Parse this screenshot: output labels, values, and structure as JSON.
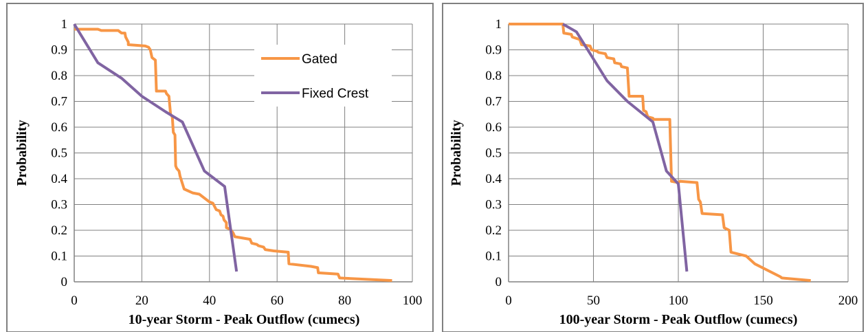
{
  "colors": {
    "gated": "#F79646",
    "fixed_crest": "#8064A2",
    "grid": "#808080",
    "frame": "#808080"
  },
  "chart_data": [
    {
      "type": "line",
      "xlabel": "10-year Storm - Peak Outflow (cumecs)",
      "ylabel": "Probability",
      "xlim": [
        0,
        100
      ],
      "ylim": [
        0,
        1
      ],
      "xticks": [
        "0",
        "20",
        "40",
        "60",
        "80",
        "100"
      ],
      "yticks": [
        "0",
        "0.1",
        "0.2",
        "0.3",
        "0.4",
        "0.5",
        "0.6",
        "0.7",
        "0.8",
        "0.9",
        "1"
      ],
      "grid": true,
      "legend": {
        "position": "top-right",
        "entries": [
          "Gated",
          "Fixed Crest"
        ]
      },
      "series": [
        {
          "name": "Gated",
          "color_key": "gated",
          "x": [
            0,
            7,
            8,
            13,
            14,
            15,
            15.2,
            16,
            16,
            21,
            22,
            22.5,
            23,
            23.5,
            24,
            24.3,
            27,
            27.3,
            28,
            28.5,
            29,
            29.3,
            29.8,
            30,
            30.3,
            31,
            31.3,
            32.5,
            35,
            37,
            40,
            41,
            42,
            43,
            43.4,
            44,
            44.3,
            45,
            45,
            46,
            46.4,
            47,
            47.5,
            52,
            52.5,
            54,
            54.5,
            56,
            56.5,
            59,
            63.3,
            63.5,
            70,
            72,
            72.2,
            78,
            78.5,
            94
          ],
          "y": [
            0.98,
            0.98,
            0.975,
            0.975,
            0.965,
            0.965,
            0.95,
            0.93,
            0.92,
            0.915,
            0.91,
            0.9,
            0.87,
            0.865,
            0.86,
            0.74,
            0.74,
            0.73,
            0.72,
            0.65,
            0.64,
            0.58,
            0.57,
            0.45,
            0.44,
            0.43,
            0.41,
            0.36,
            0.345,
            0.34,
            0.31,
            0.305,
            0.28,
            0.275,
            0.26,
            0.255,
            0.24,
            0.23,
            0.21,
            0.205,
            0.2,
            0.19,
            0.175,
            0.165,
            0.15,
            0.145,
            0.14,
            0.135,
            0.125,
            0.12,
            0.115,
            0.07,
            0.06,
            0.055,
            0.035,
            0.03,
            0.015,
            0.005
          ]
        },
        {
          "name": "Fixed Crest",
          "color_key": "fixed_crest",
          "x": [
            0,
            7,
            14,
            20,
            27,
            32,
            38.5,
            44.5,
            48
          ],
          "y": [
            1,
            0.85,
            0.79,
            0.72,
            0.66,
            0.62,
            0.43,
            0.37,
            0.04
          ]
        }
      ]
    },
    {
      "type": "line",
      "xlabel": "100-year Storm - Peak Outflow (cumecs)",
      "ylabel": "Probability",
      "xlim": [
        0,
        200
      ],
      "ylim": [
        0,
        1
      ],
      "xticks": [
        "0",
        "50",
        "100",
        "150",
        "200"
      ],
      "yticks": [
        "0",
        "0.1",
        "0.2",
        "0.3",
        "0.4",
        "0.5",
        "0.6",
        "0.7",
        "0.8",
        "0.9",
        "1"
      ],
      "grid": true,
      "series": [
        {
          "name": "Gated",
          "color_key": "gated",
          "x": [
            0,
            32,
            32.5,
            37,
            37.5,
            42,
            43,
            48,
            49,
            52,
            53,
            57,
            58,
            62,
            62.5,
            66,
            66.5,
            70,
            71,
            79,
            79.5,
            81,
            82,
            85,
            85.5,
            95,
            96,
            100,
            101,
            111,
            112,
            113,
            114,
            126,
            127,
            130,
            131,
            140,
            145,
            160,
            161,
            178
          ],
          "y": [
            1,
            1,
            0.965,
            0.96,
            0.95,
            0.94,
            0.92,
            0.915,
            0.9,
            0.895,
            0.89,
            0.885,
            0.87,
            0.865,
            0.85,
            0.845,
            0.835,
            0.83,
            0.72,
            0.72,
            0.665,
            0.66,
            0.64,
            0.635,
            0.63,
            0.63,
            0.39,
            0.385,
            0.39,
            0.385,
            0.32,
            0.31,
            0.265,
            0.26,
            0.21,
            0.2,
            0.115,
            0.1,
            0.07,
            0.02,
            0.015,
            0.005
          ]
        },
        {
          "name": "Fixed Crest",
          "color_key": "fixed_crest",
          "x": [
            32,
            40,
            58,
            70,
            85,
            93,
            100,
            105
          ],
          "y": [
            1,
            0.97,
            0.78,
            0.7,
            0.62,
            0.43,
            0.38,
            0.04
          ]
        }
      ]
    }
  ]
}
